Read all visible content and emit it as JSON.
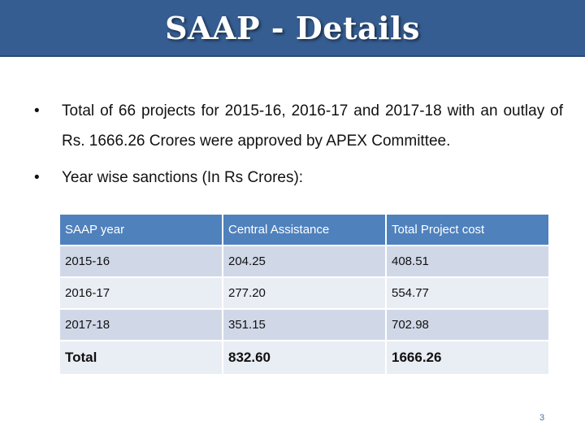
{
  "slide": {
    "title": "SAAP - Details",
    "bullets": [
      "Total of 66 projects for 2015-16, 2016-17 and 2017-18 with an outlay of Rs. 1666.26 Crores were approved by APEX Committee.",
      "Year wise sanctions  (In Rs Crores):"
    ],
    "bullet_glyph": "•",
    "table": {
      "headers": [
        "SAAP year",
        "Central Assistance",
        "Total Project cost"
      ],
      "rows": [
        [
          "2015-16",
          "204.25",
          "408.51"
        ],
        [
          "2016-17",
          "277.20",
          "554.77"
        ],
        [
          "2017-18",
          "351.15",
          "702.98"
        ]
      ],
      "total": [
        "Total",
        "832.60",
        "1666.26"
      ]
    },
    "page_number": "3",
    "colors": {
      "title_bar": "#355d91",
      "header_row": "#4f81bd",
      "row_dark": "#d0d8e8",
      "row_light": "#e9edf4"
    }
  }
}
